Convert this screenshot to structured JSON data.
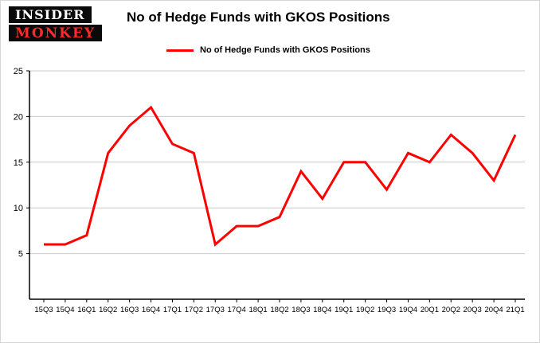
{
  "logo": {
    "line1": "INSIDER",
    "line2": "MONKEY"
  },
  "title": "No of Hedge Funds with GKOS Positions",
  "legend": {
    "label": "No of Hedge Funds with GKOS Positions"
  },
  "colors": {
    "line": "#ff0000",
    "grid": "#c9c9c9",
    "axis": "#000000",
    "logo_bg": "#0a0a0a",
    "logo_monkey": "#ff2a2a",
    "text": "#000000"
  },
  "chart_data": {
    "type": "line",
    "title": "No of Hedge Funds with GKOS Positions",
    "series_name": "No of Hedge Funds with GKOS Positions",
    "categories": [
      "15Q3",
      "15Q4",
      "16Q1",
      "16Q2",
      "16Q3",
      "16Q4",
      "17Q1",
      "17Q2",
      "17Q3",
      "17Q4",
      "18Q1",
      "18Q2",
      "18Q3",
      "18Q4",
      "19Q1",
      "19Q2",
      "19Q3",
      "19Q4",
      "20Q1",
      "20Q2",
      "20Q3",
      "20Q4",
      "21Q1"
    ],
    "values": [
      6,
      6,
      7,
      16,
      19,
      21,
      17,
      16,
      6,
      8,
      8,
      9,
      14,
      11,
      15,
      15,
      12,
      16,
      15,
      18,
      16,
      13,
      18
    ],
    "xlabel": "",
    "ylabel": "",
    "ylim": [
      0,
      25
    ],
    "yticks": [
      5,
      10,
      15,
      20,
      25
    ],
    "grid": true,
    "legend_position": "top"
  }
}
